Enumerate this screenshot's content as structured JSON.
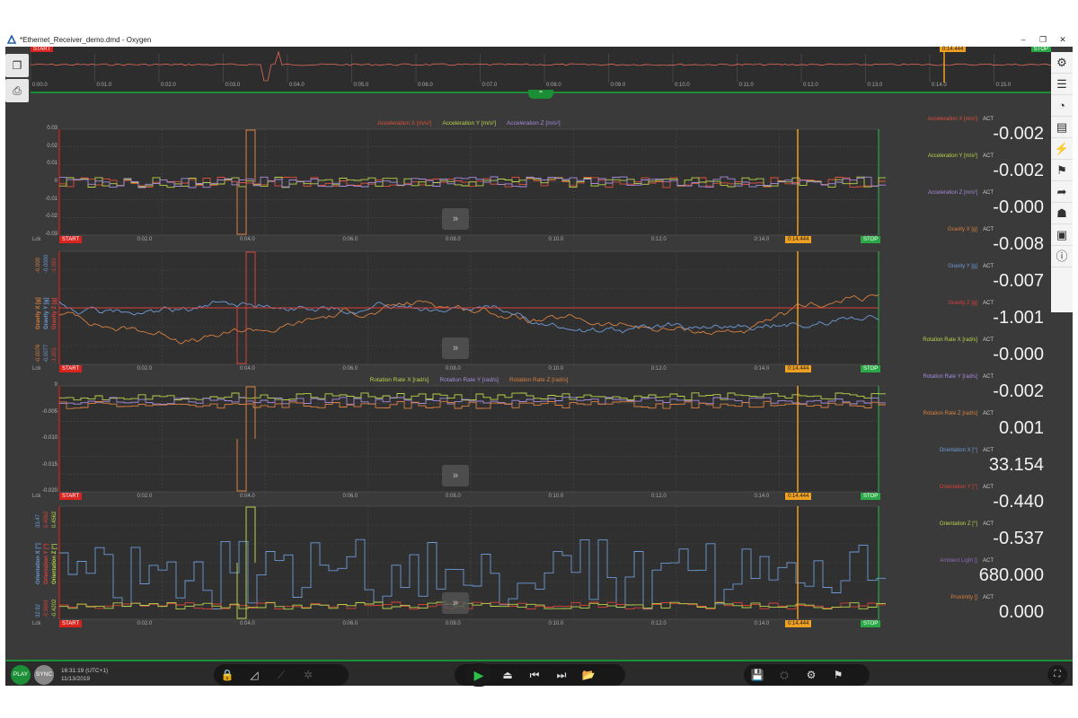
{
  "window": {
    "title": "*Ethernet_Receiver_demo.dmd - Oxygen",
    "minimize": "–",
    "maximize": "❐",
    "close": "✕"
  },
  "overview": {
    "start_label": "START",
    "stop_label": "STOP",
    "cursor_label": "0:14.444",
    "ticks": [
      "0:00.0",
      "0:01.0",
      "0:02.0",
      "0:03.0",
      "0:04.0",
      "0:05.0",
      "0:06.0",
      "0:07.0",
      "0:08.0",
      "0:09.0",
      "0:10.0",
      "0:11.0",
      "0:12.0",
      "0:13.0",
      "0:14.0",
      "0:15.0"
    ]
  },
  "plot_common": {
    "lck": "Lck",
    "start_label": "START",
    "stop_label": "STOP",
    "cursor_label": "0:14.444",
    "ff_glyph": "»",
    "xticks": [
      "0:02.0",
      "0:04.0",
      "0:06.0",
      "0:08.0",
      "0:10.0",
      "0:12.0",
      "0:14.0"
    ]
  },
  "plots": [
    {
      "legend": [
        "Acceleration X [m/s²]",
        "Acceleration Y [m/s²]",
        "Acceleration Z [m/s²]"
      ],
      "legend_colors": [
        "#e0503c",
        "#b7d34a",
        "#a78bdb"
      ],
      "yticks": [
        "0.03",
        "0.02",
        "0.01",
        "0",
        "-0.01",
        "-0.02",
        "-0.03"
      ]
    },
    {
      "vlegend": [
        "Gravity X [g]",
        "Gravity Y [g]",
        "Gravity Z [g]"
      ],
      "vlegend_colors": [
        "#d98040",
        "#6d9ad6",
        "#d8423a"
      ],
      "ytop": [
        "-0.000",
        "-0.0000",
        "-1.001"
      ],
      "ybottom": [
        "-0.0076",
        "-0.0077",
        "-1.001"
      ]
    },
    {
      "legend": [
        "Rotation Rate X [rad/s]",
        "Rotation Rate Y [rad/s]",
        "Rotation Rate Z [rad/s]"
      ],
      "legend_colors": [
        "#b7d34a",
        "#a78bdb",
        "#d98040"
      ],
      "yticks": [
        "0",
        "-0.005",
        "-0.010",
        "-0.015",
        "-0.020"
      ]
    },
    {
      "vlegend": [
        "Orientation X [°]",
        "Orientation Y [°]",
        "Orientation Z [°]"
      ],
      "vlegend_colors": [
        "#6d9ad6",
        "#d8423a",
        "#b7d34a"
      ],
      "ytop": [
        "33.47",
        "0.4562",
        "0.4562"
      ],
      "ybottom": [
        "32.92",
        "-0.5691",
        "-0.4202"
      ]
    }
  ],
  "values": [
    {
      "name": "Acceleration X [m/s²]",
      "color": "#e0503c",
      "act": "ACT",
      "value": "-0.002"
    },
    {
      "name": "Acceleration Y [m/s²]",
      "color": "#b7d34a",
      "act": "ACT",
      "value": "-0.002"
    },
    {
      "name": "Acceleration Z [m/s²]",
      "color": "#a78bdb",
      "act": "ACT",
      "value": "-0.000"
    },
    {
      "name": "Gravity X [g]",
      "color": "#d98040",
      "act": "ACT",
      "value": "-0.008"
    },
    {
      "name": "Gravity Y [g]",
      "color": "#6d9ad6",
      "act": "ACT",
      "value": "-0.007"
    },
    {
      "name": "Gravity Z [g]",
      "color": "#d8423a",
      "act": "ACT",
      "value": "-1.001"
    },
    {
      "name": "Rotation Rate X [rad/s]",
      "color": "#b7d34a",
      "act": "ACT",
      "value": "-0.000"
    },
    {
      "name": "Rotation Rate Y [rad/s]",
      "color": "#a78bdb",
      "act": "ACT",
      "value": "-0.002"
    },
    {
      "name": "Rotation Rate Z [rad/s]",
      "color": "#d98040",
      "act": "ACT",
      "value": "0.001"
    },
    {
      "name": "Orientation X [°]",
      "color": "#6d9ad6",
      "act": "ACT",
      "value": "33.154"
    },
    {
      "name": "Orientation Y [°]",
      "color": "#d8423a",
      "act": "ACT",
      "value": "-0.440"
    },
    {
      "name": "Orientation Z [°]",
      "color": "#b7d34a",
      "act": "ACT",
      "value": "-0.537"
    },
    {
      "name": "Ambient Light []",
      "color": "#8a6bb8",
      "act": "ACT",
      "value": "680.000"
    },
    {
      "name": "Proximity []",
      "color": "#d98040",
      "act": "ACT",
      "value": "0.000"
    }
  ],
  "bottombar": {
    "play_label": "PLAY",
    "sync_label": "SYNC",
    "clock_time": "16:31:19 (UTC+1)",
    "clock_date": "11/13/2019"
  }
}
